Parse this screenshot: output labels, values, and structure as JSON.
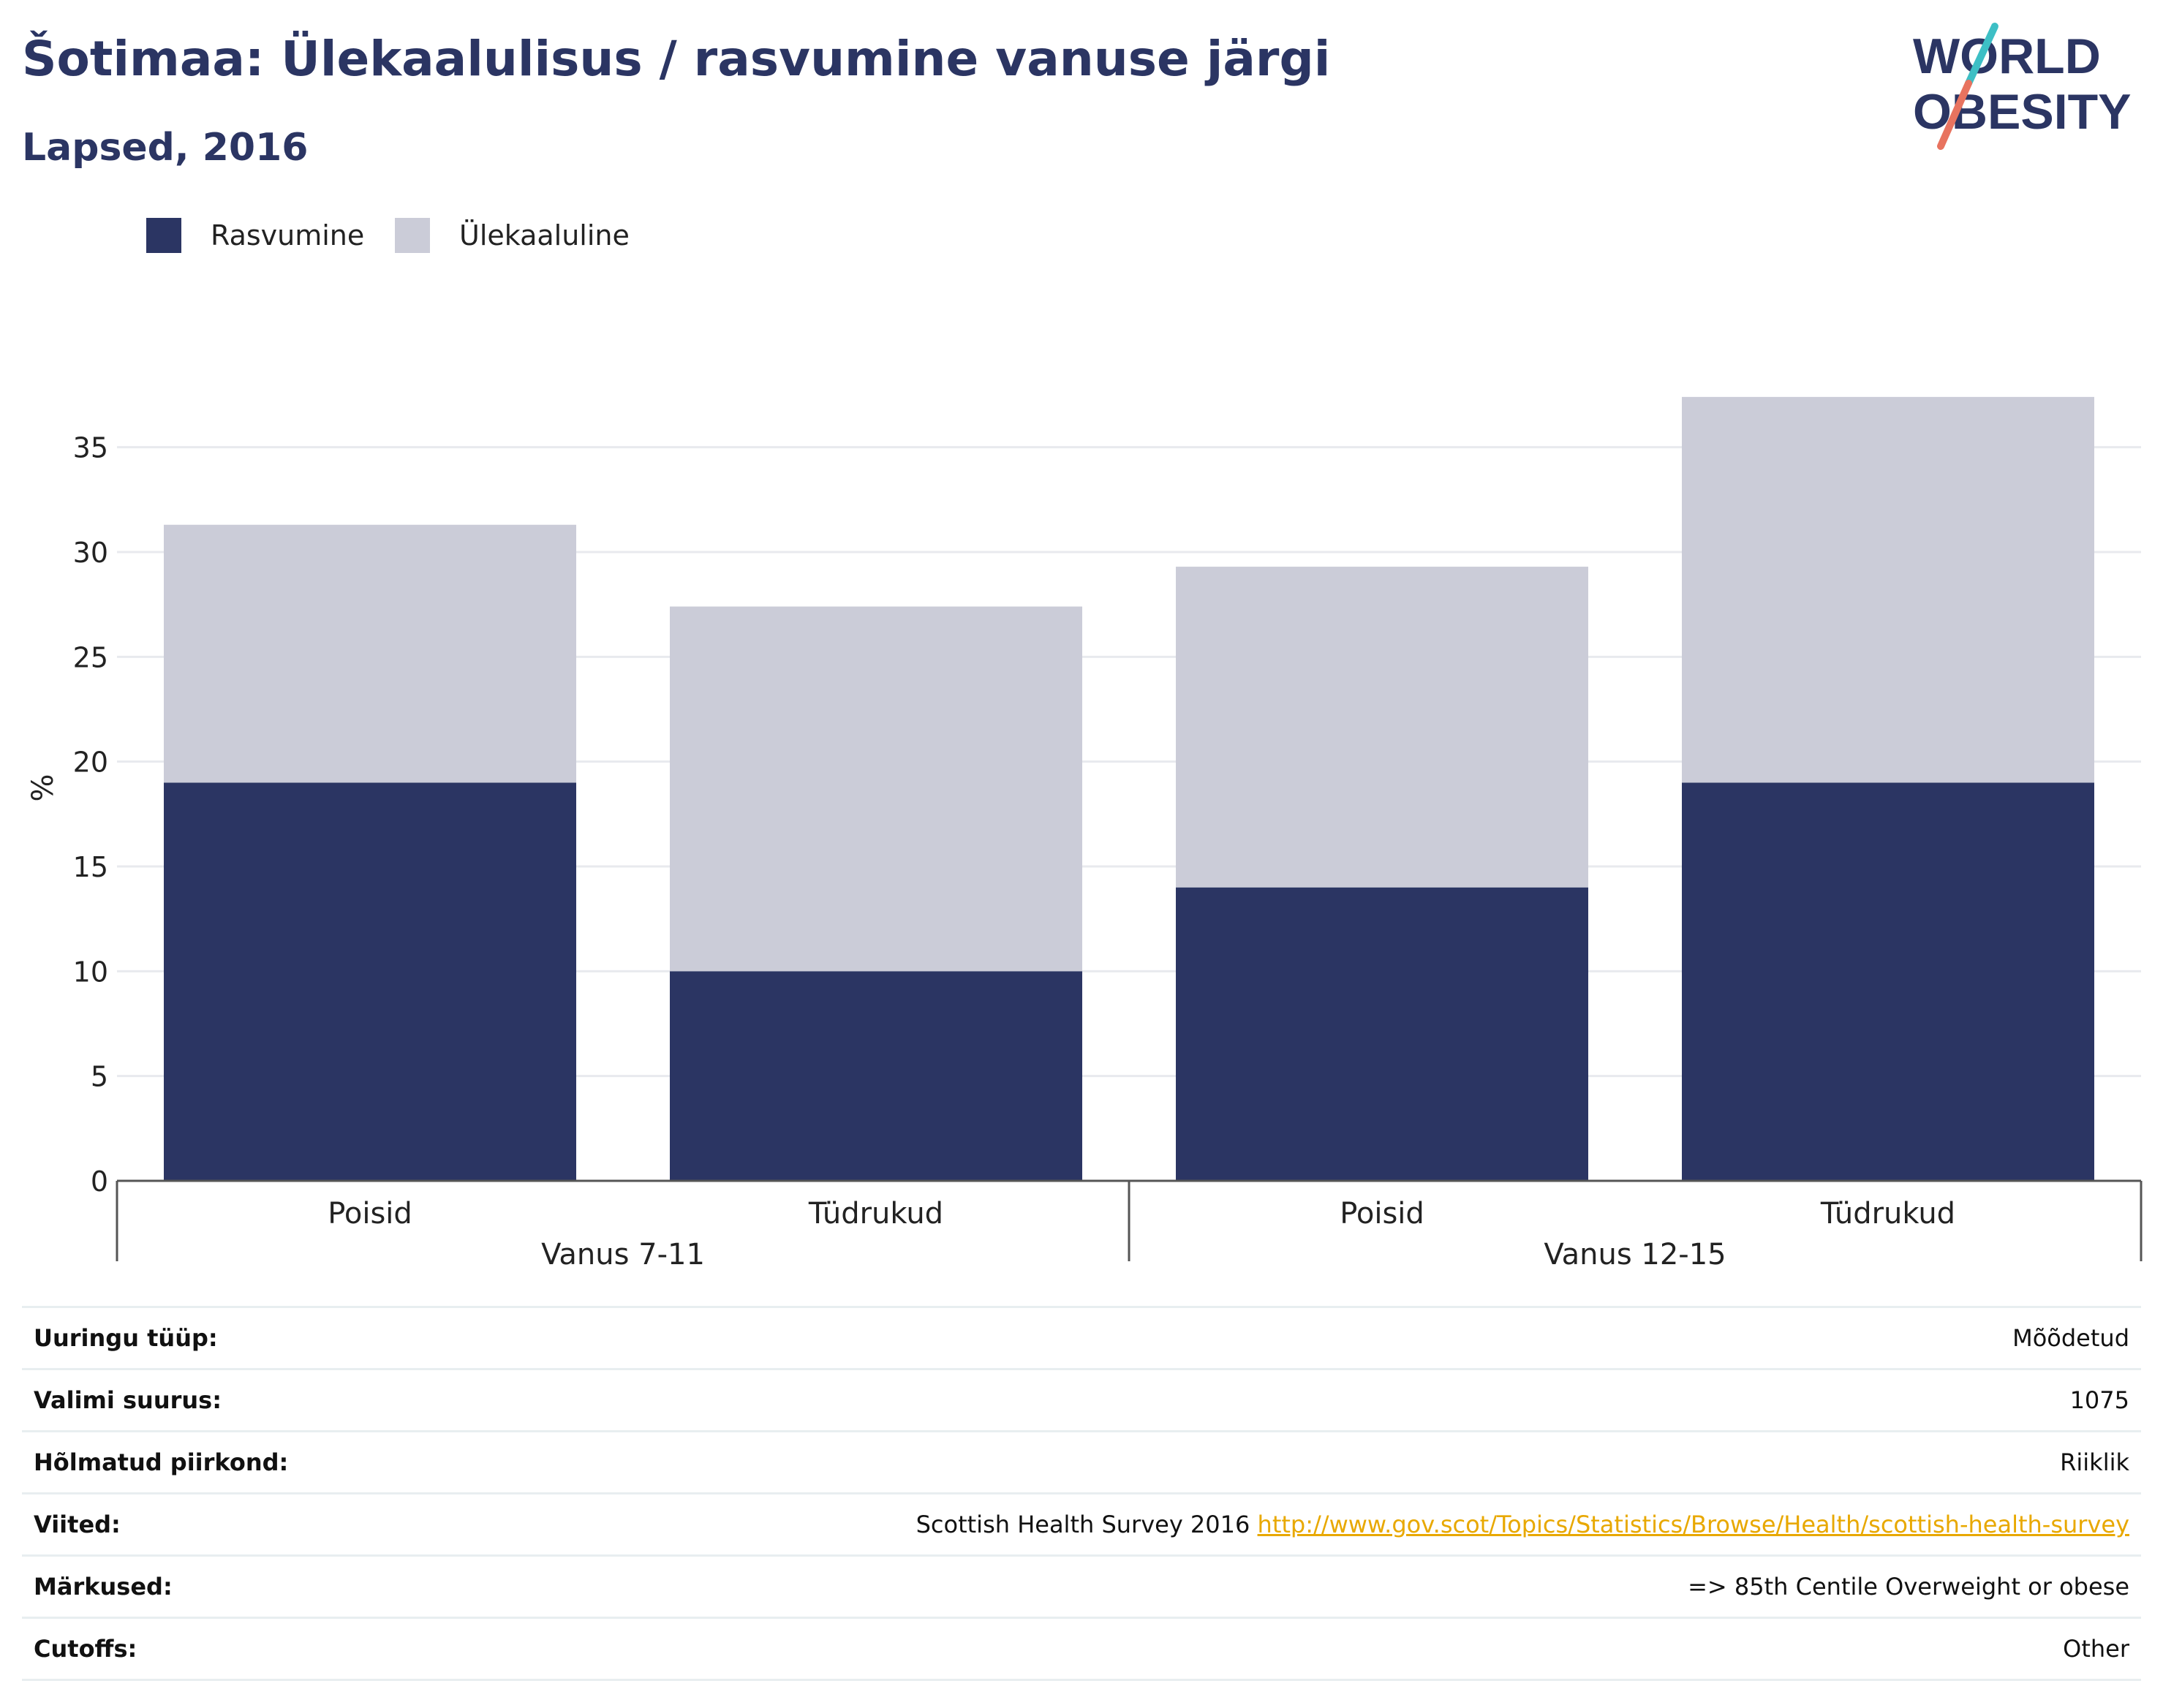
{
  "title": "Šotimaa: Ülekaalulisus / rasvumine vanuse järgi",
  "subtitle": "Lapsed, 2016",
  "logo": {
    "line1": "WORLD",
    "line2": "OBESITY"
  },
  "colors": {
    "obesity": "#2b3563",
    "overweight": "#cbccd8",
    "accent": "#2b3563",
    "link": "#e8a800",
    "logo_teal": "#3dbfc5",
    "logo_coral": "#e8735f"
  },
  "legend": [
    {
      "label": "Rasvumine",
      "color": "#2b3563"
    },
    {
      "label": "Ülekaaluline",
      "color": "#cbccd8"
    }
  ],
  "chart_data": {
    "type": "bar",
    "stacked": true,
    "categories": [
      "Poisid",
      "Tüdrukud",
      "Poisid",
      "Tüdrukud"
    ],
    "groups": [
      {
        "label": "Vanus 7-11",
        "categories": [
          "Poisid",
          "Tüdrukud"
        ]
      },
      {
        "label": "Vanus 12-15",
        "categories": [
          "Poisid",
          "Tüdrukud"
        ]
      }
    ],
    "series": [
      {
        "name": "Rasvumine",
        "values": [
          19,
          10,
          14,
          19
        ]
      },
      {
        "name": "Ülekaaluline",
        "values": [
          12.3,
          17.4,
          15.3,
          18.4
        ]
      }
    ],
    "ylabel": "%",
    "ylim": [
      0,
      37.5
    ],
    "yticks": [
      0,
      5,
      10,
      15,
      20,
      25,
      30,
      35
    ],
    "grid": true,
    "legend_position": "top-left"
  },
  "info": [
    {
      "key": "Uuringu tüüp:",
      "value": "Mõõdetud"
    },
    {
      "key": "Valimi suurus:",
      "value": "1075"
    },
    {
      "key": "Hõlmatud piirkond:",
      "value": "Riiklik"
    },
    {
      "key": "Viited:",
      "value": "Scottish Health Survey 2016",
      "link": "http://www.gov.scot/Topics/Statistics/Browse/Health/scottish-health-survey"
    },
    {
      "key": "Märkused:",
      "value": "=> 85th Centile Overweight or obese"
    },
    {
      "key": "Cutoffs:",
      "value": "Other"
    }
  ]
}
